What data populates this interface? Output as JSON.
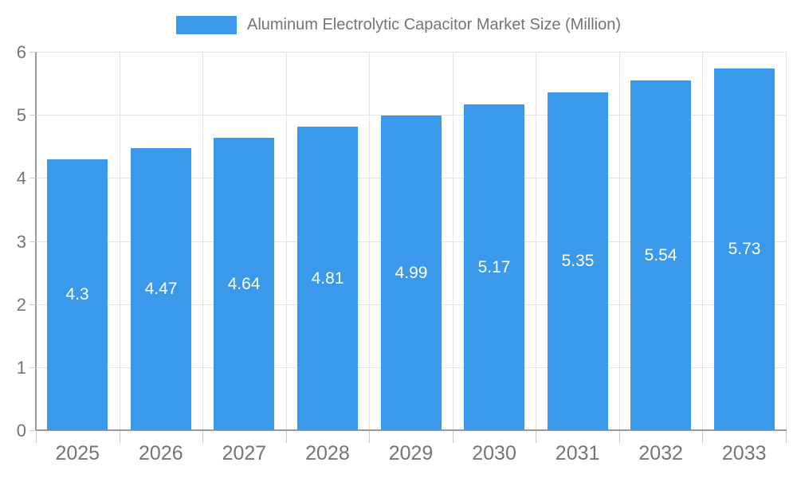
{
  "chart_data": {
    "type": "bar",
    "title": "Aluminum Electrolytic Capacitor Market Size (Million)",
    "categories": [
      "2025",
      "2026",
      "2027",
      "2028",
      "2029",
      "2030",
      "2031",
      "2032",
      "2033"
    ],
    "values": [
      4.3,
      4.47,
      4.64,
      4.81,
      4.99,
      5.17,
      5.35,
      5.54,
      5.73
    ],
    "value_labels": [
      "4.3",
      "4.47",
      "4.64",
      "4.81",
      "4.99",
      "5.17",
      "5.35",
      "5.54",
      "5.73"
    ],
    "xlabel": "",
    "ylabel": "",
    "ylim": [
      0,
      6
    ],
    "yticks": [
      0,
      1,
      2,
      3,
      4,
      5,
      6
    ],
    "grid": true,
    "legend_position": "top-center",
    "colors": {
      "bar": "#3b99ec",
      "value_label": "#ffffff",
      "axis_line": "#9a9a9a",
      "gridline": "#e5e5e5",
      "tick": "#cccccc",
      "text": "#757575"
    }
  }
}
